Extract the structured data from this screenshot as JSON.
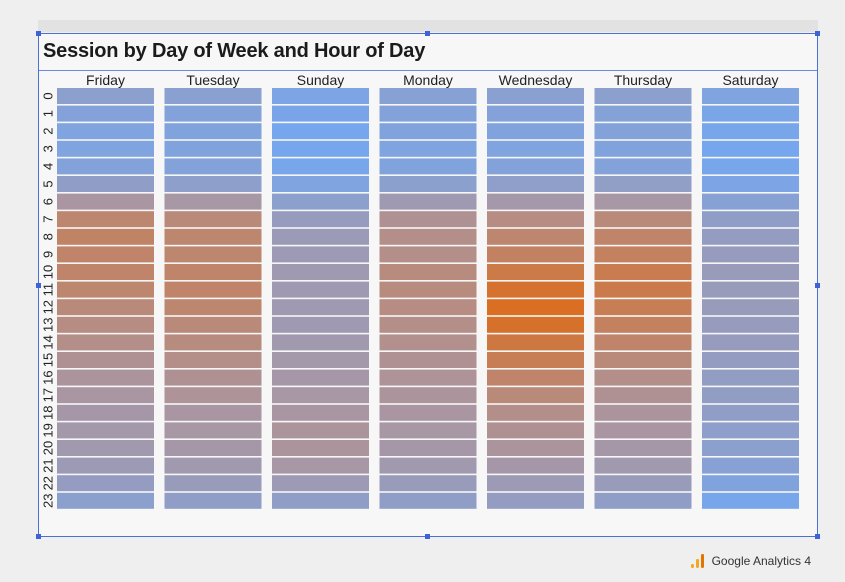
{
  "chart_data": {
    "type": "heatmap",
    "title": "Session by Day of Week and Hour of Day",
    "columns": [
      "Friday",
      "Tuesday",
      "Sunday",
      "Monday",
      "Wednesday",
      "Thursday",
      "Saturday"
    ],
    "rows": [
      "0",
      "1",
      "2",
      "3",
      "4",
      "5",
      "6",
      "7",
      "8",
      "9",
      "10",
      "11",
      "12",
      "13",
      "14",
      "15",
      "16",
      "17",
      "18",
      "19",
      "20",
      "21",
      "22",
      "23"
    ],
    "values": [
      [
        0.22,
        0.2,
        0.08,
        0.18,
        0.2,
        0.22,
        0.1
      ],
      [
        0.15,
        0.14,
        0.05,
        0.14,
        0.15,
        0.16,
        0.06
      ],
      [
        0.1,
        0.12,
        0.02,
        0.12,
        0.12,
        0.14,
        0.04
      ],
      [
        0.1,
        0.12,
        0.02,
        0.1,
        0.1,
        0.12,
        0.02
      ],
      [
        0.14,
        0.14,
        0.04,
        0.12,
        0.14,
        0.14,
        0.04
      ],
      [
        0.26,
        0.24,
        0.1,
        0.22,
        0.25,
        0.27,
        0.08
      ],
      [
        0.5,
        0.48,
        0.22,
        0.4,
        0.45,
        0.48,
        0.18
      ],
      [
        0.7,
        0.66,
        0.32,
        0.56,
        0.62,
        0.66,
        0.26
      ],
      [
        0.74,
        0.7,
        0.36,
        0.6,
        0.7,
        0.72,
        0.3
      ],
      [
        0.72,
        0.7,
        0.38,
        0.6,
        0.75,
        0.76,
        0.32
      ],
      [
        0.72,
        0.72,
        0.4,
        0.64,
        0.85,
        0.82,
        0.34
      ],
      [
        0.7,
        0.72,
        0.4,
        0.64,
        0.95,
        0.84,
        0.34
      ],
      [
        0.66,
        0.7,
        0.4,
        0.62,
        1.0,
        0.8,
        0.34
      ],
      [
        0.62,
        0.66,
        0.4,
        0.6,
        0.96,
        0.76,
        0.32
      ],
      [
        0.6,
        0.64,
        0.42,
        0.58,
        0.88,
        0.72,
        0.32
      ],
      [
        0.56,
        0.6,
        0.44,
        0.56,
        0.8,
        0.66,
        0.3
      ],
      [
        0.52,
        0.56,
        0.46,
        0.54,
        0.72,
        0.6,
        0.28
      ],
      [
        0.5,
        0.54,
        0.48,
        0.52,
        0.66,
        0.56,
        0.28
      ],
      [
        0.46,
        0.5,
        0.5,
        0.5,
        0.6,
        0.52,
        0.26
      ],
      [
        0.44,
        0.48,
        0.52,
        0.48,
        0.56,
        0.5,
        0.24
      ],
      [
        0.42,
        0.46,
        0.52,
        0.46,
        0.52,
        0.46,
        0.22
      ],
      [
        0.38,
        0.42,
        0.48,
        0.42,
        0.46,
        0.42,
        0.18
      ],
      [
        0.3,
        0.34,
        0.38,
        0.34,
        0.38,
        0.34,
        0.12
      ],
      [
        0.22,
        0.26,
        0.26,
        0.26,
        0.3,
        0.26,
        0.04
      ]
    ],
    "colors": {
      "low": "#74a7f0",
      "mid": "#aa96a2",
      "high": "#da6e22",
      "separator": "#ffffff"
    },
    "legend": "none"
  },
  "footer": {
    "brand": "Google Analytics 4"
  },
  "icons": {
    "brand_icon": "google-analytics-bars-icon"
  }
}
